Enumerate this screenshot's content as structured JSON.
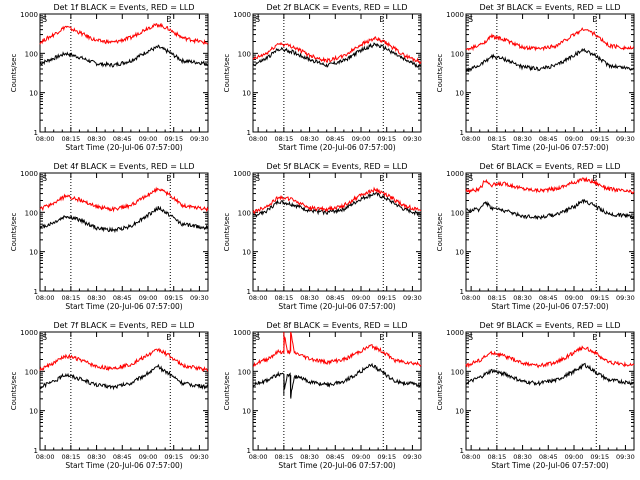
{
  "colors": {
    "events": "#000000",
    "lld": "#ff0000",
    "axes": "#000000",
    "background": "#ffffff"
  },
  "chart_data": [
    {
      "type": "line",
      "title": "Det 1f BLACK = Events, RED = LLD",
      "xlabel": "Start Time (20-Jul-06 07:57:00)",
      "ylabel": "Counts/sec",
      "x_tick_labels": [
        "08:00",
        "08:15",
        "08:30",
        "08:45",
        "09:00",
        "09:15",
        "09:30"
      ],
      "y_tick_labels": [
        "1",
        "10",
        "100",
        "1000"
      ],
      "y_scale": "log",
      "ylim": [
        1,
        1000
      ],
      "xlim": [
        "07:57",
        "09:35"
      ],
      "s_label": "S",
      "e_label": "E",
      "s_time": "08:15",
      "e_time": "09:13",
      "series": [
        {
          "color": "#000000",
          "x": [
            "07:57",
            "08:05",
            "08:12",
            "08:20",
            "08:30",
            "08:40",
            "08:50",
            "09:00",
            "09:06",
            "09:12",
            "09:20",
            "09:35"
          ],
          "values": [
            55,
            75,
            100,
            80,
            55,
            50,
            65,
            115,
            145,
            110,
            65,
            55
          ]
        },
        {
          "color": "#ff0000",
          "x": [
            "07:57",
            "08:05",
            "08:12",
            "08:20",
            "08:30",
            "08:40",
            "08:50",
            "09:00",
            "09:06",
            "09:12",
            "09:20",
            "09:35"
          ],
          "values": [
            190,
            300,
            480,
            340,
            210,
            190,
            250,
            450,
            540,
            420,
            250,
            180
          ]
        }
      ]
    },
    {
      "type": "line",
      "title": "Det 2f BLACK = Events, RED = LLD",
      "xlabel": "Start Time (20-Jul-06 07:57:00)",
      "ylabel": "Counts/sec",
      "x_tick_labels": [
        "08:00",
        "08:15",
        "08:30",
        "08:45",
        "09:00",
        "09:15",
        "09:30"
      ],
      "y_tick_labels": [
        "1",
        "10",
        "100",
        "1000"
      ],
      "y_scale": "log",
      "ylim": [
        1,
        1000
      ],
      "xlim": [
        "07:57",
        "09:35"
      ],
      "s_label": "S",
      "e_label": "E",
      "s_time": "08:15",
      "e_time": "09:13",
      "series": [
        {
          "color": "#000000",
          "x": [
            "07:57",
            "08:05",
            "08:12",
            "08:20",
            "08:30",
            "08:40",
            "08:50",
            "09:00",
            "09:08",
            "09:15",
            "09:25",
            "09:35"
          ],
          "values": [
            50,
            75,
            130,
            110,
            70,
            50,
            65,
            120,
            170,
            130,
            70,
            45
          ]
        },
        {
          "color": "#ff0000",
          "x": [
            "07:57",
            "08:05",
            "08:12",
            "08:20",
            "08:30",
            "08:40",
            "08:50",
            "09:00",
            "09:08",
            "09:15",
            "09:25",
            "09:35"
          ],
          "values": [
            70,
            100,
            180,
            150,
            90,
            65,
            85,
            170,
            240,
            180,
            90,
            60
          ]
        }
      ]
    },
    {
      "type": "line",
      "title": "Det 3f BLACK = Events, RED = LLD",
      "xlabel": "Start Time (20-Jul-06 07:57:00)",
      "ylabel": "Counts/sec",
      "x_tick_labels": [
        "08:00",
        "08:15",
        "08:30",
        "08:45",
        "09:00",
        "09:15",
        "09:30"
      ],
      "y_tick_labels": [
        "1",
        "10",
        "100",
        "1000"
      ],
      "y_scale": "log",
      "ylim": [
        1,
        1000
      ],
      "xlim": [
        "07:57",
        "09:35"
      ],
      "s_label": "S",
      "e_label": "E",
      "s_time": "08:15",
      "e_time": "09:13",
      "series": [
        {
          "color": "#000000",
          "x": [
            "07:57",
            "08:05",
            "08:12",
            "08:20",
            "08:30",
            "08:40",
            "08:50",
            "09:00",
            "09:06",
            "09:12",
            "09:20",
            "09:35"
          ],
          "values": [
            35,
            50,
            85,
            70,
            45,
            40,
            50,
            90,
            125,
            90,
            50,
            40
          ]
        },
        {
          "color": "#ff0000",
          "x": [
            "07:57",
            "08:05",
            "08:12",
            "08:20",
            "08:30",
            "08:40",
            "08:50",
            "09:00",
            "09:06",
            "09:12",
            "09:20",
            "09:35"
          ],
          "values": [
            120,
            160,
            270,
            220,
            140,
            130,
            160,
            300,
            430,
            310,
            160,
            130
          ]
        }
      ]
    },
    {
      "type": "line",
      "title": "Det 4f BLACK = Events, RED = LLD",
      "xlabel": "Start Time (20-Jul-06 07:57:00)",
      "ylabel": "Counts/sec",
      "x_tick_labels": [
        "08:00",
        "08:15",
        "08:30",
        "08:45",
        "09:00",
        "09:15",
        "09:30"
      ],
      "y_tick_labels": [
        "1",
        "10",
        "100",
        "1000"
      ],
      "y_scale": "log",
      "ylim": [
        1,
        1000
      ],
      "xlim": [
        "07:57",
        "09:35"
      ],
      "s_label": "S",
      "e_label": "E",
      "s_time": "08:15",
      "e_time": "09:13",
      "series": [
        {
          "color": "#000000",
          "x": [
            "07:57",
            "08:05",
            "08:12",
            "08:20",
            "08:30",
            "08:40",
            "08:50",
            "09:00",
            "09:06",
            "09:12",
            "09:20",
            "09:35"
          ],
          "values": [
            40,
            55,
            80,
            65,
            40,
            35,
            45,
            85,
            130,
            90,
            50,
            40
          ]
        },
        {
          "color": "#ff0000",
          "x": [
            "07:57",
            "08:05",
            "08:12",
            "08:20",
            "08:30",
            "08:40",
            "08:50",
            "09:00",
            "09:06",
            "09:12",
            "09:20",
            "09:35"
          ],
          "values": [
            120,
            170,
            260,
            210,
            140,
            120,
            150,
            280,
            400,
            290,
            150,
            120
          ]
        }
      ]
    },
    {
      "type": "line",
      "title": "Det 5f BLACK = Events, RED = LLD",
      "xlabel": "Start Time (20-Jul-06 07:57:00)",
      "ylabel": "Counts/sec",
      "x_tick_labels": [
        "08:00",
        "08:15",
        "08:30",
        "08:45",
        "09:00",
        "09:15",
        "09:30"
      ],
      "y_tick_labels": [
        "1",
        "10",
        "100",
        "1000"
      ],
      "y_scale": "log",
      "ylim": [
        1,
        1000
      ],
      "xlim": [
        "07:57",
        "09:35"
      ],
      "s_label": "S",
      "e_label": "E",
      "s_time": "08:15",
      "e_time": "09:13",
      "series": [
        {
          "color": "#000000",
          "x": [
            "07:57",
            "08:05",
            "08:12",
            "08:20",
            "08:30",
            "08:40",
            "08:50",
            "09:00",
            "09:08",
            "09:15",
            "09:25",
            "09:35"
          ],
          "values": [
            80,
            110,
            190,
            160,
            110,
            100,
            120,
            220,
            300,
            220,
            120,
            90
          ]
        },
        {
          "color": "#ff0000",
          "x": [
            "07:57",
            "08:05",
            "08:12",
            "08:20",
            "08:30",
            "08:40",
            "08:50",
            "09:00",
            "09:08",
            "09:15",
            "09:25",
            "09:35"
          ],
          "values": [
            100,
            140,
            250,
            210,
            130,
            120,
            150,
            280,
            380,
            280,
            150,
            110
          ]
        }
      ]
    },
    {
      "type": "line",
      "title": "Det 6f BLACK = Events, RED = LLD",
      "xlabel": "Start Time (20-Jul-06 07:57:00)",
      "ylabel": "Counts/sec",
      "x_tick_labels": [
        "08:00",
        "08:15",
        "08:30",
        "08:45",
        "09:00",
        "09:15",
        "09:30"
      ],
      "y_tick_labels": [
        "1",
        "10",
        "100",
        "1000"
      ],
      "y_scale": "log",
      "ylim": [
        1,
        1000
      ],
      "xlim": [
        "07:57",
        "09:35"
      ],
      "s_label": "S",
      "e_label": "E",
      "s_time": "08:15",
      "e_time": "09:13",
      "series": [
        {
          "color": "#000000",
          "x": [
            "07:57",
            "08:05",
            "08:08",
            "08:12",
            "08:20",
            "08:30",
            "08:40",
            "08:50",
            "09:00",
            "09:06",
            "09:12",
            "09:20",
            "09:35"
          ],
          "values": [
            110,
            120,
            190,
            130,
            110,
            80,
            75,
            90,
            140,
            200,
            150,
            90,
            80
          ]
        },
        {
          "color": "#ff0000",
          "x": [
            "07:57",
            "08:05",
            "08:08",
            "08:12",
            "08:20",
            "08:30",
            "08:40",
            "08:50",
            "09:00",
            "09:06",
            "09:12",
            "09:20",
            "09:35"
          ],
          "values": [
            350,
            380,
            650,
            500,
            540,
            400,
            360,
            400,
            580,
            700,
            580,
            400,
            320
          ]
        }
      ]
    },
    {
      "type": "line",
      "title": "Det 7f BLACK = Events, RED = LLD",
      "xlabel": "Start Time (20-Jul-06 07:57:00)",
      "ylabel": "Counts/sec",
      "x_tick_labels": [
        "08:00",
        "08:15",
        "08:30",
        "08:45",
        "09:00",
        "09:15",
        "09:30"
      ],
      "y_tick_labels": [
        "1",
        "10",
        "100",
        "1000"
      ],
      "y_scale": "log",
      "ylim": [
        1,
        1000
      ],
      "xlim": [
        "07:57",
        "09:35"
      ],
      "s_label": "S",
      "e_label": "E",
      "s_time": "08:15",
      "e_time": "09:13",
      "series": [
        {
          "color": "#000000",
          "x": [
            "07:57",
            "08:05",
            "08:12",
            "08:20",
            "08:30",
            "08:40",
            "08:50",
            "09:00",
            "09:06",
            "09:12",
            "09:20",
            "09:35"
          ],
          "values": [
            40,
            55,
            85,
            65,
            45,
            40,
            50,
            90,
            130,
            90,
            50,
            40
          ]
        },
        {
          "color": "#ff0000",
          "x": [
            "07:57",
            "08:05",
            "08:12",
            "08:20",
            "08:30",
            "08:40",
            "08:50",
            "09:00",
            "09:06",
            "09:12",
            "09:20",
            "09:35"
          ],
          "values": [
            110,
            160,
            250,
            200,
            130,
            120,
            150,
            260,
            360,
            260,
            140,
            110
          ]
        }
      ]
    },
    {
      "type": "line",
      "title": "Det 8f BLACK = Events, RED = LLD",
      "xlabel": "Start Time (20-Jul-06 07:57:00)",
      "ylabel": "Counts/sec",
      "x_tick_labels": [
        "08:00",
        "08:15",
        "08:30",
        "08:45",
        "09:00",
        "09:15",
        "09:30"
      ],
      "y_tick_labels": [
        "1",
        "10",
        "100",
        "1000"
      ],
      "y_scale": "log",
      "ylim": [
        1,
        1000
      ],
      "xlim": [
        "07:57",
        "09:35"
      ],
      "s_label": "S",
      "e_label": "E",
      "s_time": "08:15",
      "e_time": "09:13",
      "series": [
        {
          "color": "#000000",
          "x": [
            "07:57",
            "08:05",
            "08:12",
            "08:15",
            "08:15",
            "08:17",
            "08:19",
            "08:19",
            "08:21",
            "08:30",
            "08:40",
            "08:50",
            "09:00",
            "09:06",
            "09:12",
            "09:20",
            "09:35"
          ],
          "values": [
            45,
            60,
            85,
            80,
            25,
            85,
            80,
            22,
            75,
            55,
            45,
            55,
            100,
            150,
            100,
            55,
            45
          ]
        },
        {
          "color": "#ff0000",
          "x": [
            "07:57",
            "08:05",
            "08:12",
            "08:15",
            "08:15",
            "08:17",
            "08:19",
            "08:19",
            "08:21",
            "08:30",
            "08:40",
            "08:50",
            "09:00",
            "09:06",
            "09:12",
            "09:20",
            "09:35"
          ],
          "values": [
            150,
            200,
            320,
            300,
            1000,
            310,
            320,
            1000,
            300,
            210,
            170,
            200,
            330,
            450,
            330,
            190,
            150
          ]
        }
      ]
    },
    {
      "type": "line",
      "title": "Det 9f BLACK = Events, RED = LLD",
      "xlabel": "Start Time (20-Jul-06 07:57:00)",
      "ylabel": "Counts/sec",
      "x_tick_labels": [
        "08:00",
        "08:15",
        "08:30",
        "08:45",
        "09:00",
        "09:15",
        "09:30"
      ],
      "y_tick_labels": [
        "1",
        "10",
        "100",
        "1000"
      ],
      "y_scale": "log",
      "ylim": [
        1,
        1000
      ],
      "xlim": [
        "07:57",
        "09:35"
      ],
      "s_label": "S",
      "e_label": "E",
      "s_time": "08:15",
      "e_time": "09:13",
      "series": [
        {
          "color": "#000000",
          "x": [
            "07:57",
            "08:05",
            "08:12",
            "08:20",
            "08:30",
            "08:40",
            "08:50",
            "09:00",
            "09:06",
            "09:12",
            "09:20",
            "09:35"
          ],
          "values": [
            50,
            70,
            105,
            85,
            55,
            50,
            60,
            100,
            150,
            100,
            60,
            50
          ]
        },
        {
          "color": "#ff0000",
          "x": [
            "07:57",
            "08:05",
            "08:12",
            "08:20",
            "08:30",
            "08:40",
            "08:50",
            "09:00",
            "09:06",
            "09:12",
            "09:20",
            "09:35"
          ],
          "values": [
            140,
            190,
            300,
            240,
            160,
            140,
            170,
            300,
            420,
            300,
            170,
            140
          ]
        }
      ]
    }
  ]
}
